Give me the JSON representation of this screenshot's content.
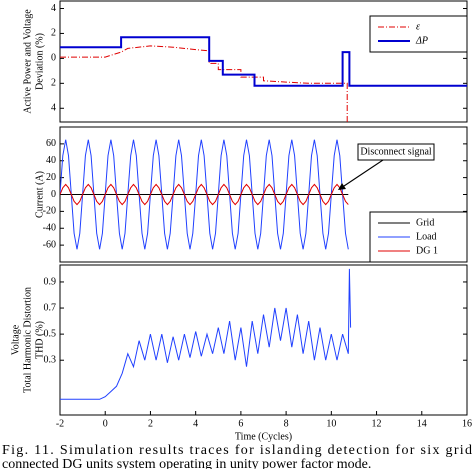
{
  "chart_data": [
    {
      "type": "line",
      "ylabel": [
        "Active Power and Voltage",
        "Deviation (%)"
      ],
      "xlim": [
        -2,
        16
      ],
      "ylim": [
        -5.1,
        4.6
      ],
      "yticks": [
        4,
        2,
        0,
        {
          "value": -2,
          "label": "2"
        },
        {
          "value": -4,
          "label": "4"
        }
      ],
      "legend": "upper right",
      "series": [
        {
          "name": "ε",
          "color": "#e00000",
          "dash": "dash-dot",
          "x": [
            -2,
            0,
            0.7,
            1,
            2,
            3,
            4,
            4.6,
            4.6,
            5,
            5,
            6,
            6,
            7,
            7,
            8,
            9,
            10,
            10.7,
            10.7
          ],
          "values": [
            0.1,
            0.1,
            0.5,
            0.8,
            1.0,
            0.9,
            0.7,
            0.6,
            -0.4,
            -0.4,
            -0.9,
            -0.9,
            -1.5,
            -1.5,
            -1.8,
            -1.9,
            -2.0,
            -2.0,
            -2.0,
            -5.1
          ]
        },
        {
          "name": "ΔP",
          "color": "#0000d0",
          "x": [
            -2,
            0.7,
            0.7,
            4.6,
            4.6,
            5.2,
            5.2,
            6.6,
            6.6,
            10.5,
            10.5,
            10.8,
            10.8,
            16
          ],
          "values": [
            0.9,
            0.9,
            1.7,
            1.7,
            -0.2,
            -0.2,
            -1.3,
            -1.3,
            -2.2,
            -2.2,
            0.5,
            0.5,
            -2.2,
            -2.2
          ]
        }
      ]
    },
    {
      "type": "line",
      "ylabel": [
        "Current (A)"
      ],
      "xlim": [
        -2,
        16
      ],
      "ylim": [
        -80,
        80
      ],
      "yticks": [
        60,
        40,
        20,
        0,
        -20,
        -40,
        -60
      ],
      "legend": "lower right",
      "annotation": "Disconnect signal",
      "x": [
        -2,
        -1.875,
        -1.75,
        -1.625,
        -1.5,
        -1.375,
        -1.25,
        -1.125,
        -1,
        -0.875,
        -0.75,
        -0.625,
        -0.5,
        -0.375,
        -0.25,
        -0.125,
        0,
        0.125,
        0.25,
        0.375,
        0.5,
        0.625,
        0.75,
        0.875,
        1,
        1.125,
        1.25,
        1.375,
        1.5,
        1.625,
        1.75,
        1.875,
        2,
        2.125,
        2.25,
        2.375,
        2.5,
        2.625,
        2.75,
        2.875,
        3,
        3.125,
        3.25,
        3.375,
        3.5,
        3.625,
        3.75,
        3.875,
        4,
        4.125,
        4.25,
        4.375,
        4.5,
        4.625,
        4.75,
        4.875,
        5,
        5.125,
        5.25,
        5.375,
        5.5,
        5.625,
        5.75,
        5.875,
        6,
        6.125,
        6.25,
        6.375,
        6.5,
        6.625,
        6.75,
        6.875,
        7,
        7.125,
        7.25,
        7.375,
        7.5,
        7.625,
        7.75,
        7.875,
        8,
        8.125,
        8.25,
        8.375,
        8.5,
        8.625,
        8.75,
        8.875,
        9,
        9.125,
        9.25,
        9.375,
        9.5,
        9.625,
        9.75,
        9.875,
        10,
        10.125,
        10.25,
        10.375,
        10.5,
        10.625,
        10.75
      ],
      "series": [
        {
          "name": "Grid",
          "color": "#000000",
          "values": [
            0,
            0,
            0,
            0,
            0,
            0,
            0,
            0,
            0,
            0,
            0,
            0,
            0,
            0,
            0,
            0,
            0,
            0,
            0,
            0,
            0,
            0,
            0,
            0,
            0,
            0,
            0,
            0,
            0,
            0,
            0,
            0,
            0,
            0,
            0,
            0,
            0,
            0,
            0,
            0,
            0,
            0,
            0,
            0,
            0,
            0,
            0,
            0,
            0,
            0,
            0,
            0,
            0,
            0,
            0,
            0,
            0,
            0,
            0,
            0,
            0,
            0,
            0,
            0,
            0,
            0,
            0,
            0,
            0,
            0,
            0,
            0,
            0,
            0,
            0,
            0,
            0,
            0,
            0,
            0,
            0,
            0,
            0,
            0,
            0,
            0,
            0,
            0,
            0,
            0,
            0,
            0,
            0,
            0,
            0,
            0,
            0,
            0,
            0,
            0,
            0,
            0,
            0
          ]
        },
        {
          "name": "Load",
          "color": "#2040ff",
          "values": [
            0,
            46,
            65,
            46,
            0,
            -46,
            -65,
            -46,
            0,
            46,
            65,
            46,
            0,
            -46,
            -65,
            -46,
            0,
            46,
            65,
            46,
            0,
            -46,
            -65,
            -46,
            0,
            46,
            65,
            46,
            0,
            -46,
            -65,
            -46,
            0,
            46,
            65,
            46,
            0,
            -46,
            -65,
            -46,
            0,
            46,
            65,
            46,
            0,
            -46,
            -65,
            -46,
            0,
            46,
            65,
            46,
            0,
            -46,
            -65,
            -46,
            0,
            46,
            65,
            46,
            0,
            -46,
            -65,
            -46,
            0,
            46,
            65,
            46,
            0,
            -46,
            -65,
            -46,
            0,
            46,
            65,
            46,
            0,
            -46,
            -65,
            -46,
            0,
            46,
            65,
            46,
            0,
            -46,
            -65,
            -46,
            0,
            46,
            65,
            46,
            0,
            -46,
            -65,
            -46,
            0,
            46,
            65,
            46,
            0,
            -46,
            -65
          ]
        },
        {
          "name": "DG 1",
          "color": "#e00000",
          "values": [
            0,
            8,
            12,
            8,
            0,
            -8,
            -12,
            -8,
            0,
            8,
            12,
            8,
            0,
            -8,
            -12,
            -8,
            0,
            8,
            12,
            8,
            0,
            -8,
            -12,
            -8,
            0,
            8,
            12,
            8,
            0,
            -8,
            -12,
            -8,
            0,
            8,
            12,
            8,
            0,
            -8,
            -12,
            -8,
            0,
            8,
            12,
            8,
            0,
            -8,
            -12,
            -8,
            0,
            8,
            12,
            8,
            0,
            -8,
            -12,
            -8,
            0,
            8,
            12,
            8,
            0,
            -8,
            -12,
            -8,
            0,
            8,
            12,
            8,
            0,
            -8,
            -12,
            -8,
            0,
            8,
            12,
            8,
            0,
            -8,
            -12,
            -8,
            0,
            8,
            12,
            8,
            0,
            -8,
            -12,
            -8,
            0,
            8,
            12,
            8,
            0,
            -8,
            -12,
            -8,
            0,
            8,
            12,
            8,
            0,
            -8,
            -12
          ]
        }
      ]
    },
    {
      "type": "line",
      "ylabel": [
        "Voltage",
        "Total Harmonic Distortion",
        "THD (%)"
      ],
      "xlabel": "Time (Cycles)",
      "xlim": [
        -2,
        16
      ],
      "ylim": [
        -0.12,
        1.03
      ],
      "xticks": [
        -2,
        0,
        2,
        4,
        6,
        8,
        10,
        12,
        14,
        16
      ],
      "yticks": [
        0.9,
        0.7,
        0.5,
        0.3
      ],
      "x": [
        -2,
        -1.75,
        -1.5,
        -1.25,
        -1,
        -0.75,
        -0.5,
        -0.25,
        0,
        0.25,
        0.5,
        0.75,
        1,
        1.25,
        1.5,
        1.75,
        2,
        2.25,
        2.5,
        2.75,
        3,
        3.25,
        3.5,
        3.75,
        4,
        4.25,
        4.5,
        4.75,
        5,
        5.25,
        5.5,
        5.75,
        6,
        6.25,
        6.5,
        6.75,
        7,
        7.25,
        7.5,
        7.75,
        8,
        8.25,
        8.5,
        8.75,
        9,
        9.25,
        9.5,
        9.75,
        10,
        10.25,
        10.5,
        10.75,
        10.8,
        10.85
      ],
      "series": [
        {
          "color": "#2040ff",
          "values": [
            0,
            0,
            0,
            0,
            0,
            0,
            0,
            0,
            0.02,
            0.06,
            0.1,
            0.2,
            0.35,
            0.25,
            0.45,
            0.3,
            0.5,
            0.3,
            0.5,
            0.28,
            0.48,
            0.3,
            0.5,
            0.32,
            0.52,
            0.33,
            0.5,
            0.35,
            0.55,
            0.35,
            0.6,
            0.3,
            0.55,
            0.25,
            0.6,
            0.35,
            0.65,
            0.4,
            0.7,
            0.45,
            0.7,
            0.4,
            0.65,
            0.35,
            0.6,
            0.3,
            0.55,
            0.3,
            0.5,
            0.3,
            0.5,
            0.35,
            1.0,
            0.55
          ]
        }
      ]
    }
  ],
  "caption": [
    "Fig.   11.   Simulation results traces for islanding detection for six grid",
    "connected DG units system operating in unity power factor mode."
  ]
}
